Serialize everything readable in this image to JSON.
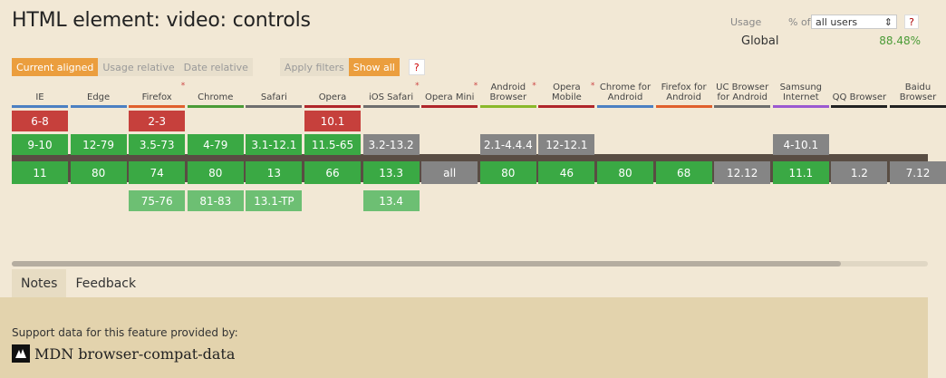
{
  "page": {
    "title": "HTML element: video: controls"
  },
  "usage": {
    "label": "Usage",
    "pct_of": "% of",
    "users_value": "all users",
    "help": "?",
    "global_label": "Global",
    "global_pct": "88.48%"
  },
  "toolbar": {
    "current_aligned": "Current aligned",
    "usage_relative": "Usage relative",
    "date_relative": "Date relative",
    "apply_filters": "Apply filters",
    "show_all": "Show all",
    "help": "?"
  },
  "browsers": [
    {
      "name": "IE",
      "color": "#4c80c2",
      "flagged": false,
      "cells": [
        [
          "6-8",
          "red"
        ],
        [
          "9-10",
          "green"
        ],
        [
          "11",
          "green"
        ],
        [
          "",
          ""
        ]
      ]
    },
    {
      "name": "Edge",
      "color": "#4c80c2",
      "flagged": false,
      "cells": [
        [
          "",
          ""
        ],
        [
          "12-79",
          "green"
        ],
        [
          "80",
          "green"
        ],
        [
          "",
          ""
        ]
      ]
    },
    {
      "name": "Firefox",
      "color": "#e0602c",
      "flagged": true,
      "cells": [
        [
          "2-3",
          "red"
        ],
        [
          "3.5-73",
          "green"
        ],
        [
          "74",
          "green"
        ],
        [
          "75-76",
          "lgreen"
        ]
      ]
    },
    {
      "name": "Chrome",
      "color": "#4a9b36",
      "flagged": false,
      "cells": [
        [
          "",
          ""
        ],
        [
          "4-79",
          "green"
        ],
        [
          "80",
          "green"
        ],
        [
          "81-83",
          "lgreen"
        ]
      ]
    },
    {
      "name": "Safari",
      "color": "#6e6e6e",
      "flagged": false,
      "cells": [
        [
          "",
          ""
        ],
        [
          "3.1-12.1",
          "green"
        ],
        [
          "13",
          "green"
        ],
        [
          "13.1-TP",
          "lgreen"
        ]
      ]
    },
    {
      "name": "Opera",
      "color": "#b0262a",
      "flagged": false,
      "cells": [
        [
          "10.1",
          "red"
        ],
        [
          "11.5-65",
          "green"
        ],
        [
          "66",
          "green"
        ],
        [
          "",
          ""
        ]
      ]
    },
    {
      "name": "iOS Safari",
      "color": "#6e6e6e",
      "flagged": true,
      "cells": [
        [
          "",
          ""
        ],
        [
          "3.2-13.2",
          "gray"
        ],
        [
          "13.3",
          "green"
        ],
        [
          "13.4",
          "lgreen"
        ]
      ]
    },
    {
      "name": "Opera Mini",
      "color": "#b0262a",
      "flagged": true,
      "cells": [
        [
          "",
          ""
        ],
        [
          "",
          ""
        ],
        [
          "all",
          "gray"
        ],
        [
          "",
          ""
        ]
      ]
    },
    {
      "name": "Android Browser",
      "color": "#8ab82a",
      "flagged": true,
      "cells": [
        [
          "",
          ""
        ],
        [
          "2.1-4.4.4",
          "gray"
        ],
        [
          "80",
          "green"
        ],
        [
          "",
          ""
        ]
      ]
    },
    {
      "name": "Opera Mobile",
      "color": "#b0262a",
      "flagged": true,
      "cells": [
        [
          "",
          ""
        ],
        [
          "12-12.1",
          "gray"
        ],
        [
          "46",
          "green"
        ],
        [
          "",
          ""
        ]
      ]
    },
    {
      "name": "Chrome for Android",
      "color": "#4c80c2",
      "flagged": false,
      "cells": [
        [
          "",
          ""
        ],
        [
          "",
          ""
        ],
        [
          "80",
          "green"
        ],
        [
          "",
          ""
        ]
      ]
    },
    {
      "name": "Firefox for Android",
      "color": "#e0602c",
      "flagged": false,
      "cells": [
        [
          "",
          ""
        ],
        [
          "",
          ""
        ],
        [
          "68",
          "green"
        ],
        [
          "",
          ""
        ]
      ]
    },
    {
      "name": "UC Browser for Android",
      "color": "#6e6e6e",
      "flagged": false,
      "cells": [
        [
          "",
          ""
        ],
        [
          "",
          ""
        ],
        [
          "12.12",
          "gray"
        ],
        [
          "",
          ""
        ]
      ]
    },
    {
      "name": "Samsung Internet",
      "color": "#9b59d0",
      "flagged": false,
      "cells": [
        [
          "",
          ""
        ],
        [
          "4-10.1",
          "gray"
        ],
        [
          "11.1",
          "green"
        ],
        [
          "",
          ""
        ]
      ]
    },
    {
      "name": "QQ Browser",
      "color": "#222222",
      "flagged": false,
      "cells": [
        [
          "",
          ""
        ],
        [
          "",
          ""
        ],
        [
          "1.2",
          "gray"
        ],
        [
          "",
          ""
        ]
      ]
    },
    {
      "name": "Baidu Browser",
      "color": "#222222",
      "flagged": false,
      "cells": [
        [
          "",
          ""
        ],
        [
          "",
          ""
        ],
        [
          "7.12",
          "gray"
        ],
        [
          "",
          ""
        ]
      ]
    }
  ],
  "tabs": {
    "notes": "Notes",
    "feedback": "Feedback"
  },
  "footer": {
    "support_text": "Support data for this feature provided by:",
    "mdn_label": "MDN browser-compat-data"
  }
}
